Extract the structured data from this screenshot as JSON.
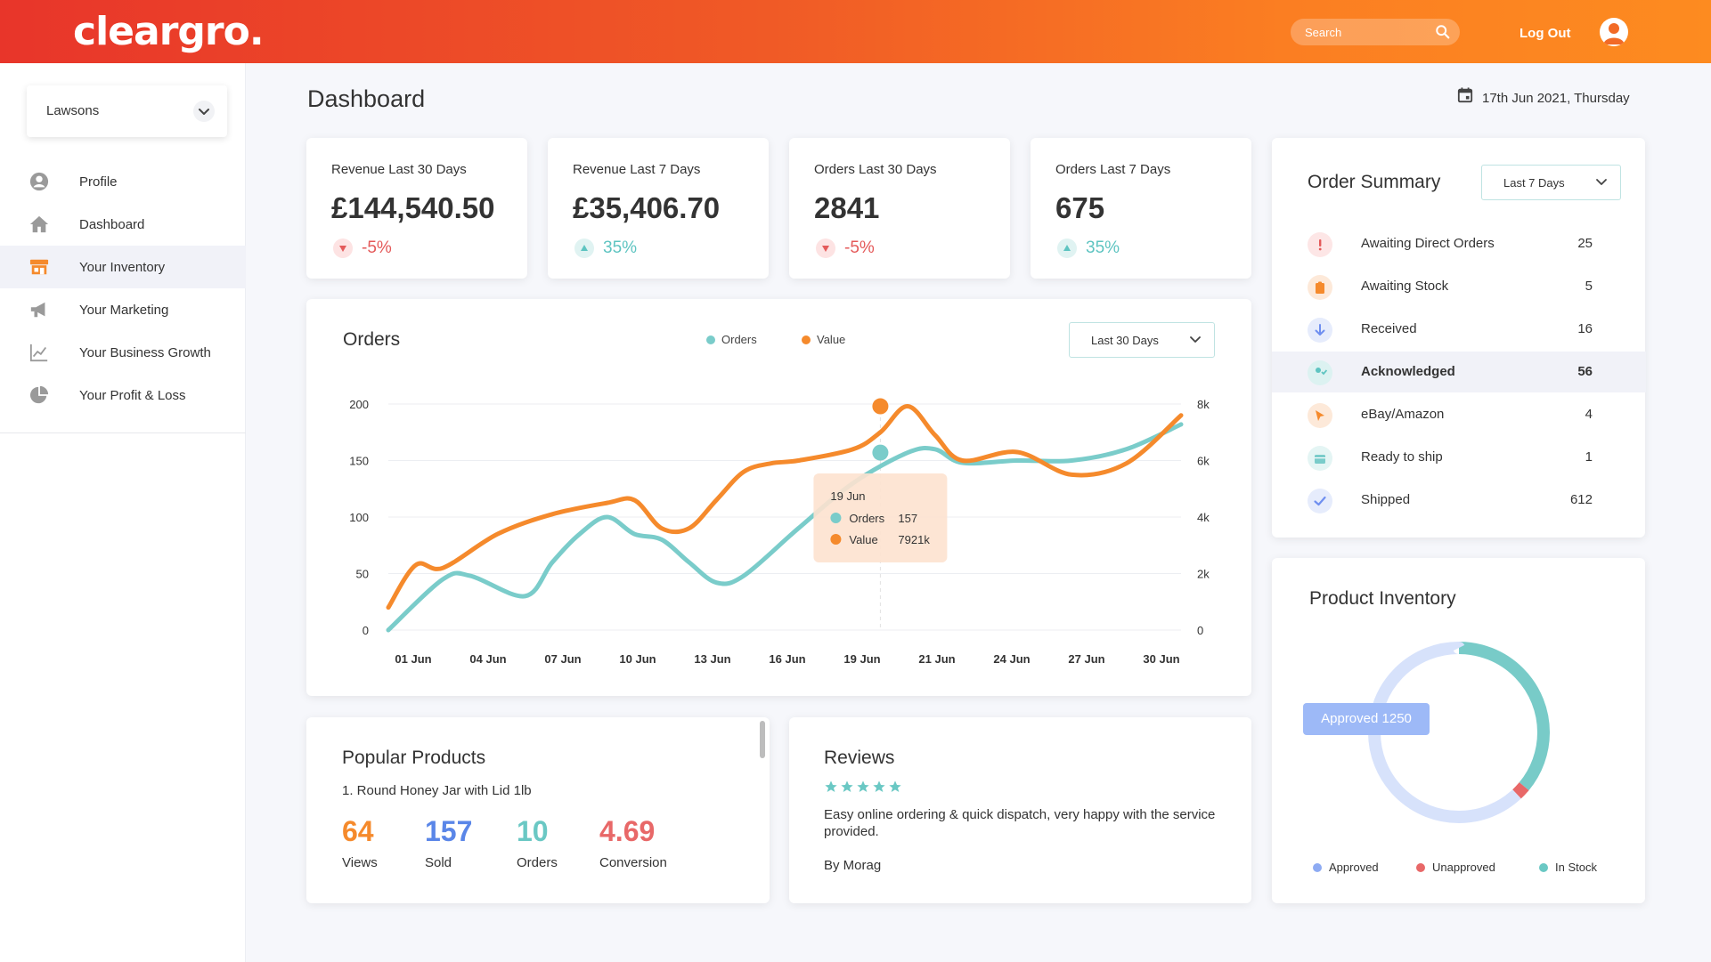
{
  "header": {
    "logo": "cleargro.",
    "search_placeholder": "Search",
    "logout_label": "Log Out"
  },
  "sidebar": {
    "store_selected": "Lawsons",
    "items": [
      {
        "label": "Profile",
        "icon": "user-icon"
      },
      {
        "label": "Dashboard",
        "icon": "home-icon"
      },
      {
        "label": "Your Inventory",
        "icon": "store-icon",
        "active": true
      },
      {
        "label": "Your Marketing",
        "icon": "megaphone-icon"
      },
      {
        "label": "Your Business Growth",
        "icon": "growth-chart-icon"
      },
      {
        "label": "Your Profit & Loss",
        "icon": "pie-chart-icon"
      }
    ]
  },
  "page": {
    "title": "Dashboard",
    "date": "17th Jun 2021, Thursday"
  },
  "stats": [
    {
      "label": "Revenue Last 30 Days",
      "value": "£144,540.50",
      "trend": "-5%",
      "direction": "down"
    },
    {
      "label": "Revenue Last 7 Days",
      "value": "£35,406.70",
      "trend": "35%",
      "direction": "up"
    },
    {
      "label": "Orders Last 30 Days",
      "value": "2841",
      "trend": "-5%",
      "direction": "down"
    },
    {
      "label": "Orders Last 7 Days",
      "value": "675",
      "trend": "35%",
      "direction": "up"
    }
  ],
  "orders_chart": {
    "title": "Orders",
    "range_label": "Last 30 Days",
    "tooltip": {
      "date": "19 Jun",
      "orders_label": "Orders",
      "orders_value": "157",
      "value_label": "Value",
      "value_value": "7921k"
    }
  },
  "chart_data": {
    "type": "line",
    "title": "Orders",
    "xlabel": "",
    "ylabel": "",
    "x_ticks": [
      "01 Jun",
      "04 Jun",
      "07 Jun",
      "10 Jun",
      "13 Jun",
      "16 Jun",
      "19 Jun",
      "21 Jun",
      "24 Jun",
      "27 Jun",
      "30 Jun"
    ],
    "y_left_ticks": [
      "0",
      "50",
      "100",
      "150",
      "200"
    ],
    "y_right_ticks": [
      "0",
      "2k",
      "4k",
      "6k",
      "8k"
    ],
    "ylim_left": [
      0,
      200
    ],
    "ylim_right": [
      0,
      8000
    ],
    "legend_position": "top",
    "grid": true,
    "series": [
      {
        "name": "Orders",
        "axis": "left",
        "color": "#7accca",
        "x": [
          0,
          2,
          3,
          5,
          6,
          7,
          8,
          9,
          10,
          11,
          12,
          13,
          15,
          17,
          19,
          20,
          21,
          23,
          25,
          27,
          29
        ],
        "y": [
          0,
          45,
          48,
          30,
          60,
          85,
          100,
          85,
          80,
          60,
          42,
          48,
          90,
          130,
          157,
          160,
          148,
          150,
          150,
          160,
          182
        ]
      },
      {
        "name": "Value",
        "axis": "right",
        "color": "#f58a2c",
        "x": [
          0,
          1,
          2,
          4,
          6,
          8,
          9,
          10,
          11,
          12,
          13,
          14,
          15,
          17,
          18,
          19,
          20,
          21,
          23,
          25,
          27,
          29
        ],
        "y": [
          800,
          2300,
          2200,
          3400,
          4100,
          4500,
          4600,
          3600,
          3600,
          4600,
          5600,
          5900,
          6000,
          6400,
          7000,
          7921,
          6900,
          6000,
          6300,
          5500,
          5900,
          7600
        ]
      }
    ],
    "highlight": {
      "x_label": "19 Jun",
      "orders": 157,
      "value": "7921k"
    }
  },
  "order_summary": {
    "title": "Order Summary",
    "range_label": "Last 7 Days",
    "rows": [
      {
        "label": "Awaiting Direct Orders",
        "count": "25",
        "icon": "alert-icon",
        "color": "#e45a5a",
        "bg": "#fde6e6"
      },
      {
        "label": "Awaiting Stock",
        "count": "5",
        "icon": "clipboard-icon",
        "color": "#f58a2c",
        "bg": "#fde9d9"
      },
      {
        "label": "Received",
        "count": "16",
        "icon": "arrow-down-icon",
        "color": "#6f8ff0",
        "bg": "#e6ecfc"
      },
      {
        "label": "Acknowledged",
        "count": "56",
        "icon": "user-check-icon",
        "color": "#5ec4c1",
        "bg": "#dcf2f1",
        "highlight": true
      },
      {
        "label": "eBay/Amazon",
        "count": "4",
        "icon": "cursor-icon",
        "color": "#f58a2c",
        "bg": "#fde9d9"
      },
      {
        "label": "Ready to ship",
        "count": "1",
        "icon": "package-icon",
        "color": "#7accca",
        "bg": "#e4f5f4"
      },
      {
        "label": "Shipped",
        "count": "612",
        "icon": "check-icon",
        "color": "#6f8ff0",
        "bg": "#e6ecfc"
      }
    ]
  },
  "product_inventory": {
    "title": "Product Inventory",
    "tooltip": "Approved 1250",
    "legend": [
      {
        "label": "Approved",
        "color": "#8eabf3"
      },
      {
        "label": "Unapproved",
        "color": "#e86868"
      },
      {
        "label": "In Stock",
        "color": "#6ac8c4"
      }
    ],
    "segments": [
      {
        "label": "In Stock",
        "fraction": 0.36,
        "color": "#78cbc8"
      },
      {
        "label": "Unapproved",
        "fraction": 0.02,
        "color": "#e86868"
      },
      {
        "label": "Approved",
        "fraction": 0.62,
        "color": "#d7e2fb"
      }
    ]
  },
  "popular_products": {
    "title": "Popular Products",
    "product": "1. Round Honey Jar with Lid 1lb",
    "metrics": [
      {
        "value": "64",
        "label": "Views",
        "color": "#f58a2c"
      },
      {
        "value": "157",
        "label": "Sold",
        "color": "#5a86e8"
      },
      {
        "value": "10",
        "label": "Orders",
        "color": "#6ac8c4"
      },
      {
        "value": "4.69",
        "label": "Conversion",
        "color": "#e86868"
      }
    ]
  },
  "reviews": {
    "title": "Reviews",
    "rating": 5,
    "text": "Easy online ordering & quick dispatch, very happy with the service provided.",
    "author": "By Morag"
  }
}
